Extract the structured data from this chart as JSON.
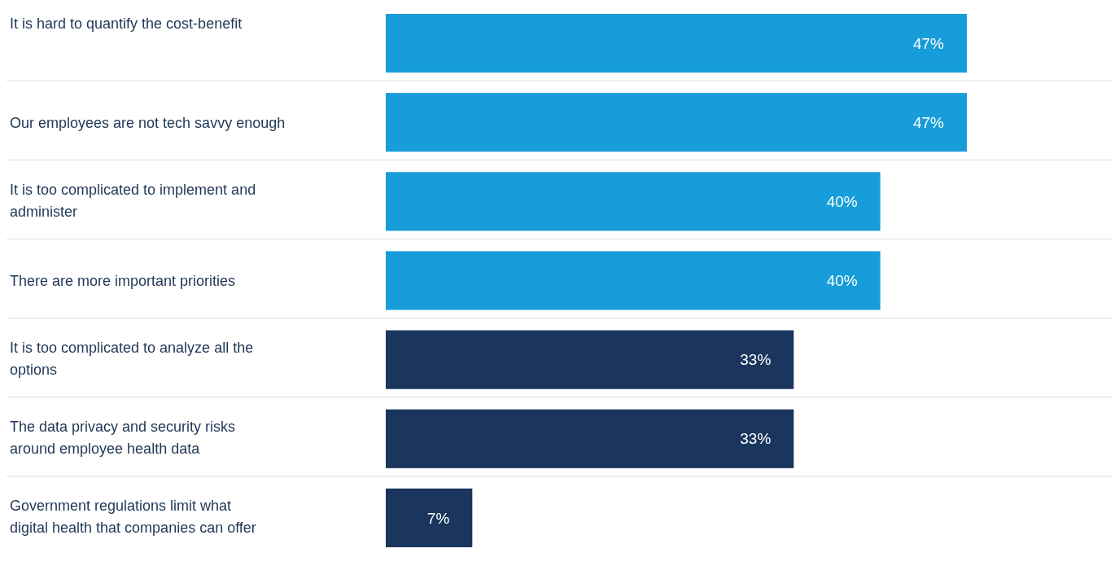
{
  "chart_data": {
    "type": "bar",
    "orientation": "horizontal",
    "value_labels": [
      "47%",
      "47%",
      "40%",
      "40%",
      "33%",
      "33%",
      "7%"
    ],
    "grid": "y",
    "categories": [
      "It is hard to quantify the cost-benefit",
      "Our employees are not tech savvy enough",
      "It is too complicated to implement and administer",
      "There are more important priorities",
      "It is too complicated to analyze all the options",
      "The data privacy and security risks around employee health data",
      "Government regulations limit what digital health that companies can offer"
    ],
    "values": [
      47,
      47,
      40,
      40,
      33,
      33,
      7
    ],
    "colors": [
      "#179dd9",
      "#179dd9",
      "#179dd9",
      "#179dd9",
      "#1a365d",
      "#1a365d",
      "#1a365d"
    ]
  }
}
